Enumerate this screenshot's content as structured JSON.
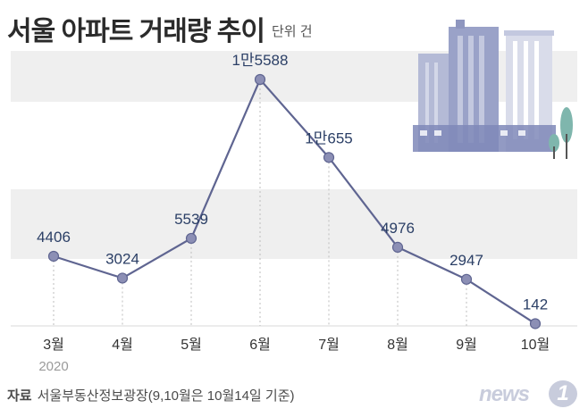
{
  "title": "서울 아파트 거래량 추이",
  "unit": "단위 건",
  "source_label": "자료",
  "source_text": "서울부동산정보광장(9,10월은 10월14일 기준)",
  "logo_text": "news",
  "logo_number": "1",
  "colors": {
    "line": "#5f6591",
    "point": "#8c8fb5",
    "band": "#efefef",
    "text": "#2b3f66"
  },
  "chart_data": {
    "type": "line",
    "title": "서울 아파트 거래량 추이",
    "categories": [
      "3월",
      "4월",
      "5월",
      "6월",
      "7월",
      "8월",
      "9월",
      "10월"
    ],
    "year_label": "2020",
    "values": [
      4406,
      3024,
      5539,
      15588,
      10655,
      4976,
      2947,
      142
    ],
    "value_labels": [
      "4406",
      "3024",
      "5539",
      "1만5588",
      "1만655",
      "4976",
      "2947",
      "142"
    ],
    "ylim": [
      0,
      17000
    ],
    "grid": false,
    "legend": "none"
  }
}
